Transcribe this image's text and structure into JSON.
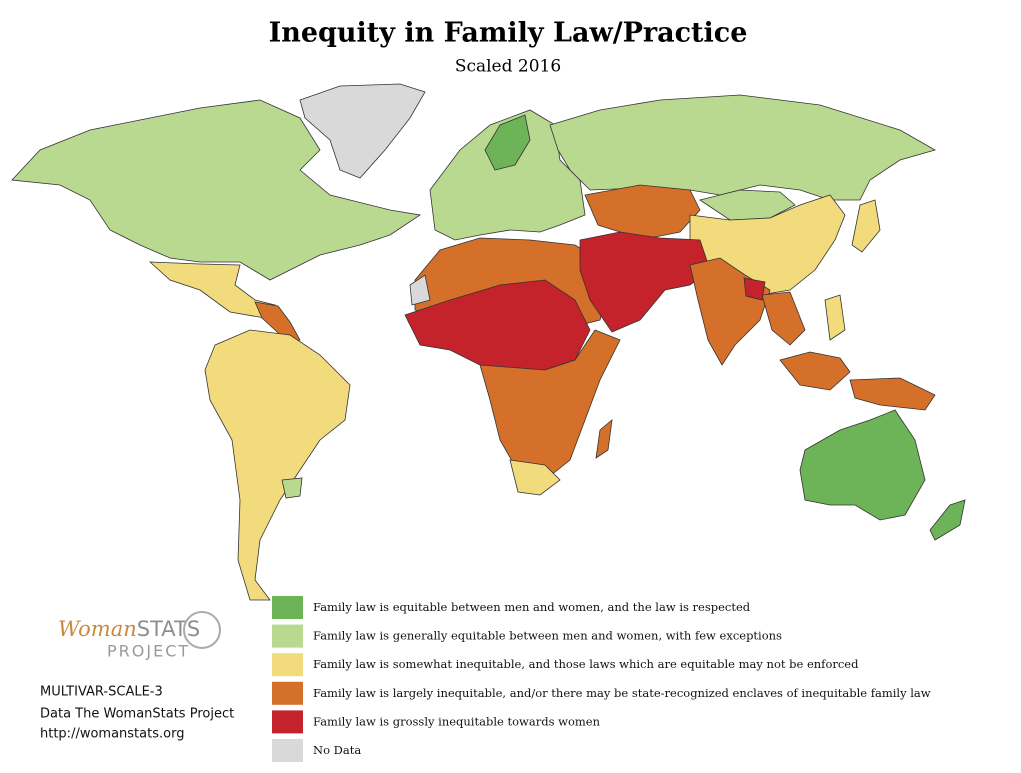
{
  "header": {
    "title": "Inequity in Family Law/Practice",
    "subtitle": "Scaled 2016"
  },
  "legend": [
    {
      "label": "Family law is equitable between men and women, and the law is respected",
      "color": "#6db358"
    },
    {
      "label": "Family law is generally equitable between men and women, with few exceptions",
      "color": "#b8d98f"
    },
    {
      "label": "Family law is somewhat inequitable, and those laws which are equitable may not be enforced",
      "color": "#f2db7c"
    },
    {
      "label": "Family law is largely inequitable, and/or there may be state-recognized enclaves of inequitable family law",
      "color": "#d5702b"
    },
    {
      "label": "Family law is grossly inequitable towards women",
      "color": "#c4232b"
    },
    {
      "label": "No Data",
      "color": "#d9d9d9"
    }
  ],
  "logo": {
    "name_script": "Woman",
    "name_caps": "STATS",
    "project": "PROJECT"
  },
  "footer": {
    "scale": "MULTIVAR-SCALE-3",
    "source": "Data The WomanStats Project",
    "url": "http://womanstats.org"
  }
}
